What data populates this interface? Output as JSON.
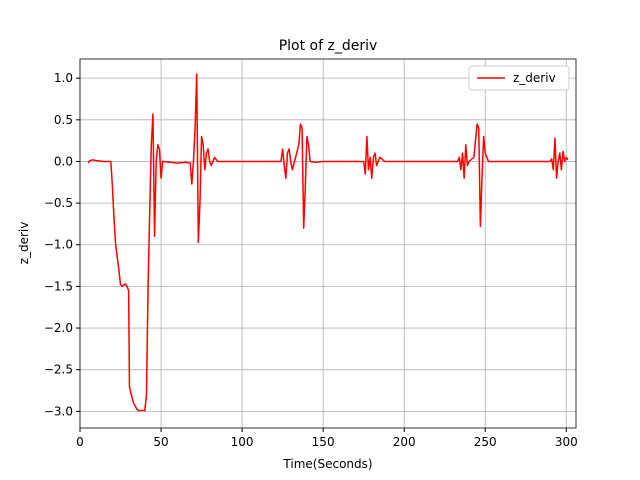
{
  "chart_data": {
    "type": "line",
    "title": "Plot of z_deriv",
    "xlabel": "Time(Seconds)",
    "ylabel": "z_deriv",
    "x": [
      5,
      6,
      8,
      10,
      15,
      19,
      20,
      21,
      22,
      24,
      25,
      26,
      28,
      29,
      30,
      30.5,
      31,
      33,
      35,
      36,
      40,
      41,
      42,
      43,
      44,
      45,
      46,
      47,
      48,
      49,
      50,
      51,
      52,
      60,
      65,
      68,
      69,
      70,
      71,
      72,
      73,
      74,
      75,
      76,
      77,
      78,
      79,
      80,
      81,
      83,
      85,
      90,
      120,
      124,
      125,
      126,
      127,
      128,
      129,
      130,
      131,
      133,
      135,
      136,
      137,
      138,
      139,
      140,
      141,
      142,
      145,
      150,
      175,
      176,
      177,
      178,
      179,
      180,
      181,
      182,
      183,
      185,
      188,
      190,
      230,
      233,
      234,
      235,
      236,
      237,
      238,
      239,
      240,
      243,
      245,
      246,
      247,
      248,
      249,
      250,
      252,
      260,
      290,
      291,
      292,
      293,
      294,
      295,
      296,
      297,
      298,
      299,
      300,
      301
    ],
    "series": [
      {
        "name": "z_deriv",
        "color": "#ff0000",
        "values": [
          -0.02,
          0.01,
          0.02,
          0.01,
          0.0,
          0.0,
          -0.3,
          -0.7,
          -1.0,
          -1.3,
          -1.48,
          -1.5,
          -1.47,
          -1.5,
          -1.55,
          -2.7,
          -2.75,
          -2.9,
          -2.97,
          -2.99,
          -2.99,
          -2.8,
          -1.5,
          -0.6,
          0.2,
          0.57,
          -0.9,
          0.0,
          0.2,
          0.15,
          -0.2,
          0.0,
          0.0,
          -0.02,
          -0.01,
          -0.02,
          -0.27,
          0.0,
          0.4,
          1.05,
          -0.97,
          -0.5,
          0.3,
          0.2,
          -0.1,
          0.1,
          0.15,
          0.0,
          -0.05,
          0.05,
          0.0,
          0.0,
          0.0,
          0.0,
          0.15,
          -0.05,
          -0.2,
          0.1,
          0.15,
          0.0,
          -0.1,
          0.05,
          0.2,
          0.45,
          0.4,
          -0.8,
          -0.3,
          0.3,
          0.2,
          0.0,
          -0.01,
          0.0,
          0.0,
          -0.15,
          0.3,
          -0.1,
          0.05,
          -0.2,
          0.05,
          0.1,
          -0.05,
          0.05,
          0.0,
          0.0,
          0.0,
          0.0,
          0.05,
          -0.1,
          0.1,
          -0.2,
          0.2,
          -0.05,
          0.0,
          0.05,
          0.45,
          0.4,
          -0.78,
          -0.2,
          0.3,
          0.1,
          0.0,
          0.0,
          0.0,
          0.03,
          -0.1,
          0.28,
          -0.2,
          0.0,
          0.1,
          -0.1,
          0.12,
          0.0,
          0.05,
          0.02
        ]
      }
    ],
    "xlim": [
      0,
      306
    ],
    "ylim": [
      -3.2,
      1.23
    ],
    "xticks": [
      0,
      50,
      100,
      150,
      200,
      250,
      300
    ],
    "yticks": [
      {
        "value": -3.0,
        "label": "−3.0"
      },
      {
        "value": -2.5,
        "label": "−2.5"
      },
      {
        "value": -2.0,
        "label": "−2.0"
      },
      {
        "value": -1.5,
        "label": "−1.5"
      },
      {
        "value": -1.0,
        "label": "−1.0"
      },
      {
        "value": -0.5,
        "label": "−0.5"
      },
      {
        "value": 0.0,
        "label": "0.0"
      },
      {
        "value": 0.5,
        "label": "0.5"
      },
      {
        "value": 1.0,
        "label": "1.0"
      }
    ],
    "grid": true,
    "legend": "upper right"
  }
}
